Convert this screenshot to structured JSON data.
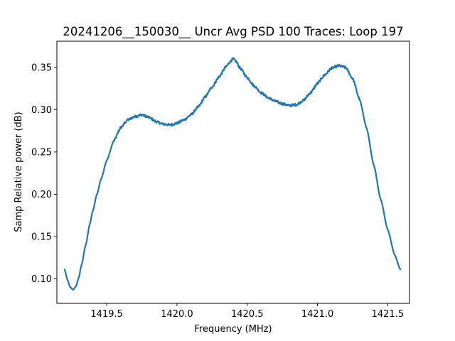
{
  "chart_data": {
    "type": "line",
    "title": "20241206__150030__  Uncr Avg PSD 100 Traces: Loop 197",
    "xlabel": "Frequency (MHz)",
    "ylabel": "Samp Relative power (dB)",
    "xlim": [
      1419.145,
      1421.655
    ],
    "ylim": [
      0.071,
      0.381
    ],
    "xticks": [
      1419.5,
      1420.0,
      1420.5,
      1421.0,
      1421.5
    ],
    "xtick_labels": [
      "1419.5",
      "1420.0",
      "1420.5",
      "1421.0",
      "1421.5"
    ],
    "yticks": [
      0.1,
      0.15,
      0.2,
      0.25,
      0.3,
      0.35
    ],
    "ytick_labels": [
      "0.10",
      "0.15",
      "0.20",
      "0.25",
      "0.30",
      "0.35"
    ],
    "grid": false,
    "series": [
      {
        "color": "#1f77b4",
        "x": [
          1419.2,
          1419.22,
          1419.24,
          1419.26,
          1419.28,
          1419.3,
          1419.32,
          1419.35,
          1419.38,
          1419.4,
          1419.43,
          1419.46,
          1419.5,
          1419.55,
          1419.6,
          1419.65,
          1419.7,
          1419.75,
          1419.8,
          1419.85,
          1419.9,
          1419.95,
          1420.0,
          1420.05,
          1420.1,
          1420.15,
          1420.2,
          1420.25,
          1420.3,
          1420.35,
          1420.38,
          1420.4,
          1420.42,
          1420.45,
          1420.5,
          1420.55,
          1420.6,
          1420.65,
          1420.7,
          1420.75,
          1420.8,
          1420.85,
          1420.9,
          1420.95,
          1421.0,
          1421.05,
          1421.1,
          1421.15,
          1421.2,
          1421.25,
          1421.3,
          1421.35,
          1421.4,
          1421.45,
          1421.5,
          1421.55,
          1421.59
        ],
        "y": [
          0.111,
          0.099,
          0.09,
          0.087,
          0.091,
          0.101,
          0.116,
          0.14,
          0.165,
          0.18,
          0.2,
          0.218,
          0.24,
          0.263,
          0.279,
          0.288,
          0.292,
          0.294,
          0.291,
          0.286,
          0.283,
          0.282,
          0.284,
          0.288,
          0.294,
          0.303,
          0.315,
          0.327,
          0.339,
          0.351,
          0.357,
          0.36,
          0.357,
          0.349,
          0.338,
          0.328,
          0.32,
          0.314,
          0.31,
          0.307,
          0.305,
          0.306,
          0.311,
          0.32,
          0.331,
          0.341,
          0.349,
          0.352,
          0.35,
          0.337,
          0.312,
          0.278,
          0.235,
          0.194,
          0.158,
          0.128,
          0.111
        ]
      }
    ]
  }
}
